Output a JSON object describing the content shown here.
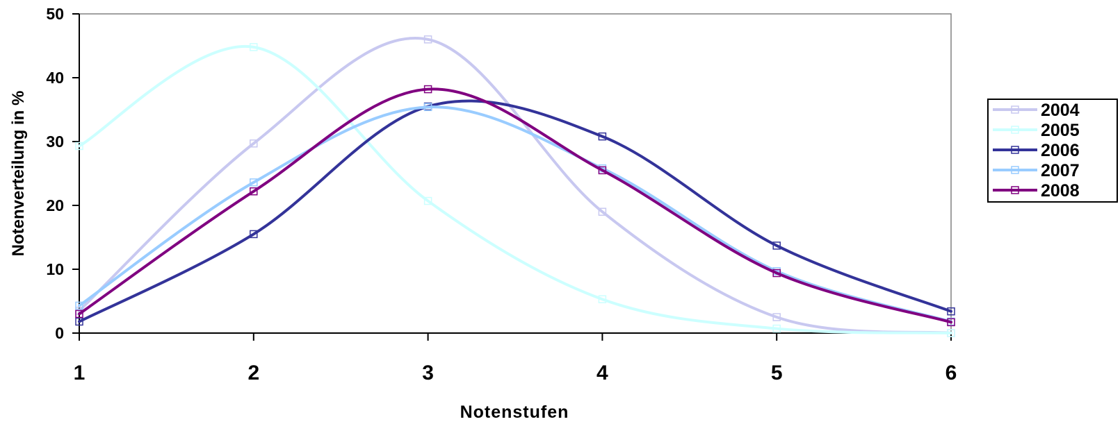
{
  "chart_data": {
    "type": "line",
    "title": "",
    "xlabel": "Notenstufen",
    "ylabel": "Notenverteilung in %",
    "x": [
      1,
      2,
      3,
      4,
      5,
      6
    ],
    "x_ticks": [
      "1",
      "2",
      "3",
      "4",
      "5",
      "6"
    ],
    "xlim": [
      1,
      6
    ],
    "ylim": [
      0,
      50
    ],
    "y_ticks": [
      "0",
      "10",
      "20",
      "30",
      "40",
      "50"
    ],
    "grid": false,
    "legend_position": "right",
    "smooth": true,
    "series": [
      {
        "name": "2004",
        "color": "#c8c8f0",
        "values": [
          3.5,
          29.7,
          46.0,
          19.0,
          2.5,
          0.0
        ]
      },
      {
        "name": "2005",
        "color": "#ccffff",
        "values": [
          29.3,
          44.8,
          20.7,
          5.3,
          0.7,
          0.0
        ]
      },
      {
        "name": "2006",
        "color": "#333399",
        "values": [
          1.8,
          15.5,
          35.5,
          30.8,
          13.7,
          3.4
        ]
      },
      {
        "name": "2007",
        "color": "#99ccff",
        "values": [
          4.3,
          23.6,
          35.4,
          25.8,
          9.7,
          1.8
        ]
      },
      {
        "name": "2008",
        "color": "#800080",
        "values": [
          3.0,
          22.2,
          38.2,
          25.5,
          9.4,
          1.7
        ]
      }
    ]
  }
}
